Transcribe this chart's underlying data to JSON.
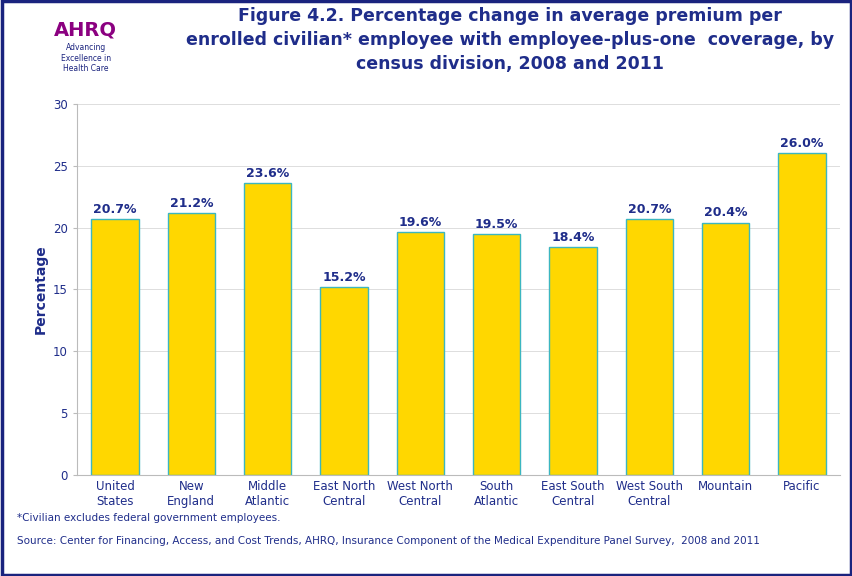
{
  "title": "Figure 4.2. Percentage change in average premium per\nenrolled civilian* employee with employee-plus-one  coverage, by\ncensus division, 2008 and 2011",
  "ylabel": "Percentage",
  "categories": [
    "United\nStates",
    "New\nEngland",
    "Middle\nAtlantic",
    "East North\nCentral",
    "West North\nCentral",
    "South\nAtlantic",
    "East South\nCentral",
    "West South\nCentral",
    "Mountain",
    "Pacific"
  ],
  "values": [
    20.7,
    21.2,
    23.6,
    15.2,
    19.6,
    19.5,
    18.4,
    20.7,
    20.4,
    26.0
  ],
  "bar_color": "#FFD700",
  "bar_edge_color": "#3CB6C0",
  "value_labels": [
    "20.7%",
    "21.2%",
    "23.6%",
    "15.2%",
    "19.6%",
    "19.5%",
    "18.4%",
    "20.7%",
    "20.4%",
    "26.0%"
  ],
  "ylim": [
    0,
    30
  ],
  "yticks": [
    0,
    5,
    10,
    15,
    20,
    25,
    30
  ],
  "title_color": "#1F2D8A",
  "axis_label_color": "#1F2D8A",
  "tick_label_color": "#1F2D8A",
  "value_label_color": "#1F2D8A",
  "background_color": "#FFFFFF",
  "header_bar_color": "#1A237E",
  "logo_bg_color": "#1A9BB0",
  "footnote1": "*Civilian excludes federal government employees.",
  "footnote2": "Source: Center for Financing, Access, and Cost Trends, AHRQ, Insurance Component of the Medical Expenditure Panel Survey,  2008 and 2011",
  "title_fontsize": 12.5,
  "ylabel_fontsize": 10,
  "tick_fontsize": 8.5,
  "value_fontsize": 9,
  "footnote_fontsize": 7.5
}
